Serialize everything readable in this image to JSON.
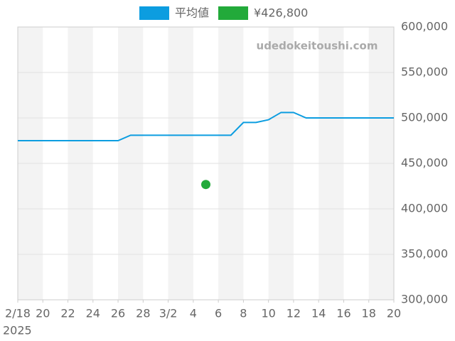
{
  "chart_data": {
    "type": "line",
    "watermark": "udedokeitoushi.com",
    "x_year_label": "2025",
    "xlim": [
      "2025-02-18",
      "2025-03-20"
    ],
    "xticks": [
      {
        "value": "2025-02-18",
        "label": "2/18"
      },
      {
        "value": "2025-02-20",
        "label": "20"
      },
      {
        "value": "2025-02-22",
        "label": "22"
      },
      {
        "value": "2025-02-24",
        "label": "24"
      },
      {
        "value": "2025-02-26",
        "label": "26"
      },
      {
        "value": "2025-02-28",
        "label": "28"
      },
      {
        "value": "2025-03-02",
        "label": "3/2"
      },
      {
        "value": "2025-03-04",
        "label": "4"
      },
      {
        "value": "2025-03-06",
        "label": "6"
      },
      {
        "value": "2025-03-08",
        "label": "8"
      },
      {
        "value": "2025-03-10",
        "label": "10"
      },
      {
        "value": "2025-03-12",
        "label": "12"
      },
      {
        "value": "2025-03-14",
        "label": "14"
      },
      {
        "value": "2025-03-16",
        "label": "16"
      },
      {
        "value": "2025-03-18",
        "label": "18"
      },
      {
        "value": "2025-03-20",
        "label": "20"
      }
    ],
    "ylim": [
      300000,
      600000
    ],
    "yticks": [
      {
        "value": 300000,
        "label": "300,000"
      },
      {
        "value": 350000,
        "label": "350,000"
      },
      {
        "value": 400000,
        "label": "400,000"
      },
      {
        "value": 450000,
        "label": "450,000"
      },
      {
        "value": 500000,
        "label": "500,000"
      },
      {
        "value": 550000,
        "label": "550,000"
      },
      {
        "value": 600000,
        "label": "600,000"
      }
    ],
    "grid": true,
    "series": [
      {
        "name": "平均値",
        "type": "line",
        "color": "#0c9de0",
        "x": [
          "2025-02-18",
          "2025-02-19",
          "2025-02-20",
          "2025-02-21",
          "2025-02-22",
          "2025-02-23",
          "2025-02-24",
          "2025-02-25",
          "2025-02-26",
          "2025-02-27",
          "2025-02-28",
          "2025-03-01",
          "2025-03-02",
          "2025-03-03",
          "2025-03-04",
          "2025-03-05",
          "2025-03-06",
          "2025-03-07",
          "2025-03-08",
          "2025-03-09",
          "2025-03-10",
          "2025-03-11",
          "2025-03-12",
          "2025-03-13",
          "2025-03-14",
          "2025-03-15",
          "2025-03-16",
          "2025-03-17",
          "2025-03-18",
          "2025-03-19",
          "2025-03-20"
        ],
        "values": [
          475000,
          475000,
          475000,
          475000,
          475000,
          475000,
          475000,
          475000,
          475000,
          481000,
          481000,
          481000,
          481000,
          481000,
          481000,
          481000,
          481000,
          481000,
          495000,
          495000,
          498000,
          506000,
          506000,
          500000,
          500000,
          500000,
          500000,
          500000,
          500000,
          500000,
          500000
        ]
      },
      {
        "name": "¥426,800",
        "type": "scatter",
        "color": "#22aa3a",
        "x": [
          "2025-03-05"
        ],
        "values": [
          426800
        ]
      }
    ]
  }
}
